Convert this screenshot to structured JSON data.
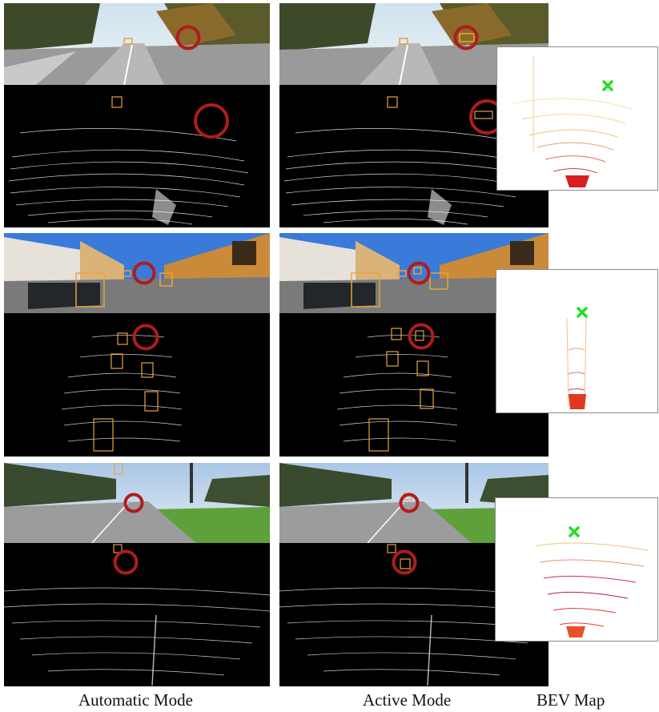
{
  "captions": {
    "automatic": "Automatic Mode",
    "active": "Active Mode",
    "bev": "BEV Map"
  },
  "colors": {
    "box_outline": "#e8a43a",
    "highlight_circle": "#b01c1c",
    "bev_marker": "#22e022",
    "point_cloud": "#ffffff",
    "bev_points_near": "#d81e1e",
    "bev_points_far": "#f3c27a"
  },
  "icons": {
    "bev_marker": "x-mark-icon",
    "highlight": "circle-highlight-icon"
  }
}
